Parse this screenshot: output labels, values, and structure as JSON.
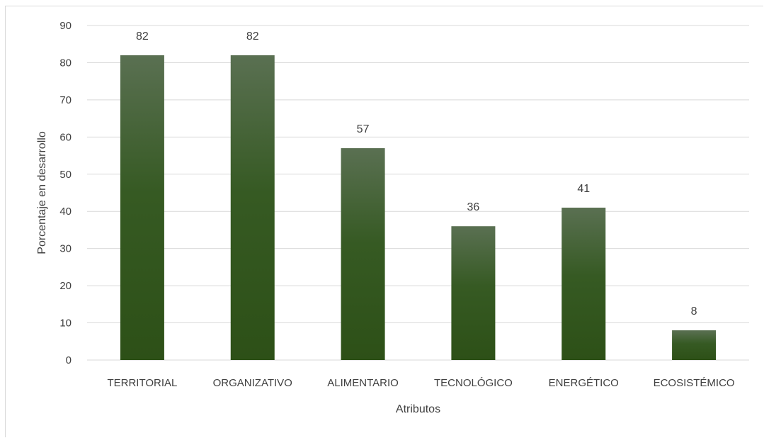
{
  "chart_data": {
    "type": "bar",
    "categories": [
      "TERRITORIAL",
      "ORGANIZATIVO",
      "ALIMENTARIO",
      "TECNOLÓGICO",
      "ENERGÉTICO",
      "ECOSISTÉMICO"
    ],
    "values": [
      82,
      82,
      57,
      36,
      41,
      8
    ],
    "data_labels": [
      "82",
      "82",
      "57",
      "36",
      "41",
      "8"
    ],
    "title": "",
    "xlabel": "Atributos",
    "ylabel": "Porcentaje en desarrollo",
    "ylim": [
      0,
      90
    ],
    "yticks": [
      0,
      10,
      20,
      30,
      40,
      50,
      60,
      70,
      80,
      90
    ],
    "grid": true,
    "legend": "none",
    "colors": {
      "bar_top": "#5a7052",
      "bar_bottom": "#2d5017",
      "grid": "#d9d9d9",
      "text": "#404040"
    }
  }
}
